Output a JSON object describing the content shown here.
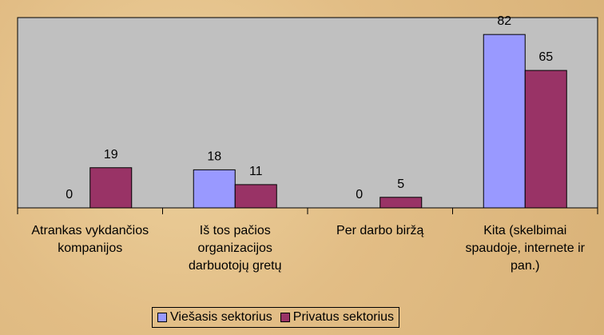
{
  "chart_data": {
    "type": "bar",
    "categories": [
      "Atrankas vykdančios kompanijos",
      "Iš tos pačios organizacijos darbuotojų gretų",
      "Per darbo biržą",
      "Kita (skelbimai spaudoje, internete ir pan.)"
    ],
    "series": [
      {
        "name": "Viešasis sektorius",
        "color": "#9999ff",
        "values": [
          0,
          18,
          0,
          82
        ]
      },
      {
        "name": "Privatus sektorius",
        "color": "#993366",
        "values": [
          19,
          11,
          5,
          65
        ]
      }
    ],
    "ylim": [
      0,
      90
    ],
    "plot_background": "#c0c0c0",
    "legend": "bottom"
  }
}
